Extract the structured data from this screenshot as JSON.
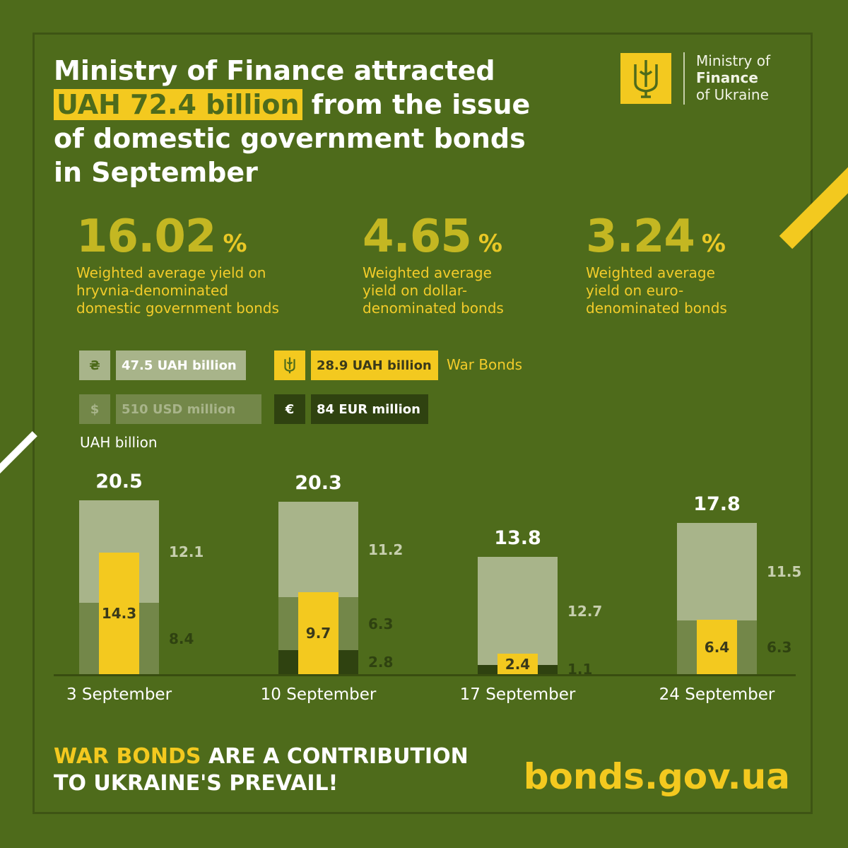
{
  "title": {
    "line1": "Ministry of Finance attracted",
    "highlight": "UAH 72.4 billion",
    "line2_rest": " from the issue",
    "line3": "of domestic government bonds",
    "line4": "in September"
  },
  "logo": {
    "line1": "Ministry of",
    "line2": "Finance",
    "line3": "of Ukraine",
    "icon": "trident-icon"
  },
  "stats": [
    {
      "value": "16.02",
      "unit": "%",
      "desc1": "Weighted average yield on",
      "desc2": "hryvnia-denominated",
      "desc3": "domestic government bonds"
    },
    {
      "value": "4.65",
      "unit": "%",
      "desc1": "Weighted average",
      "desc2": "yield on dollar-",
      "desc3": "denominated bonds"
    },
    {
      "value": "3.24",
      "unit": "%",
      "desc1": "Weighted average",
      "desc2": "yield on euro-",
      "desc3": "denominated bonds"
    }
  ],
  "legend": {
    "uah": {
      "symbol": "₴",
      "label": "47.5 UAH billion"
    },
    "war": {
      "icon": "trident-icon",
      "label": "28.9 UAH billion",
      "note": "War Bonds"
    },
    "usd": {
      "symbol": "$",
      "label": "510 USD million"
    },
    "eur": {
      "symbol": "€",
      "label": "84 EUR million"
    }
  },
  "unit_label": "UAH billion",
  "colors": {
    "background": "#4e6b1b",
    "uah": "#a8b48a",
    "usd": "#738749",
    "eur": "#2f4210",
    "war": "#f3c91f"
  },
  "chart_data": {
    "type": "bar",
    "categories": [
      "3 September",
      "10 September",
      "17 September",
      "24 September"
    ],
    "totals": [
      20.5,
      20.3,
      13.8,
      17.8
    ],
    "series": [
      {
        "name": "UAH",
        "values": [
          12.1,
          11.2,
          12.7,
          11.5
        ]
      },
      {
        "name": "USD",
        "values": [
          8.4,
          6.3,
          null,
          6.3
        ]
      },
      {
        "name": "EUR",
        "values": [
          null,
          2.8,
          1.1,
          null
        ]
      },
      {
        "name": "War Bonds",
        "values": [
          14.3,
          9.7,
          2.4,
          6.4
        ]
      }
    ],
    "ylabel": "UAH billion"
  },
  "footer": {
    "highlight": "WAR BONDS",
    "line1_rest": " ARE A CONTRIBUTION",
    "line2": "TO UKRAINE'S PREVAIL!",
    "site": "bonds.gov.ua"
  }
}
